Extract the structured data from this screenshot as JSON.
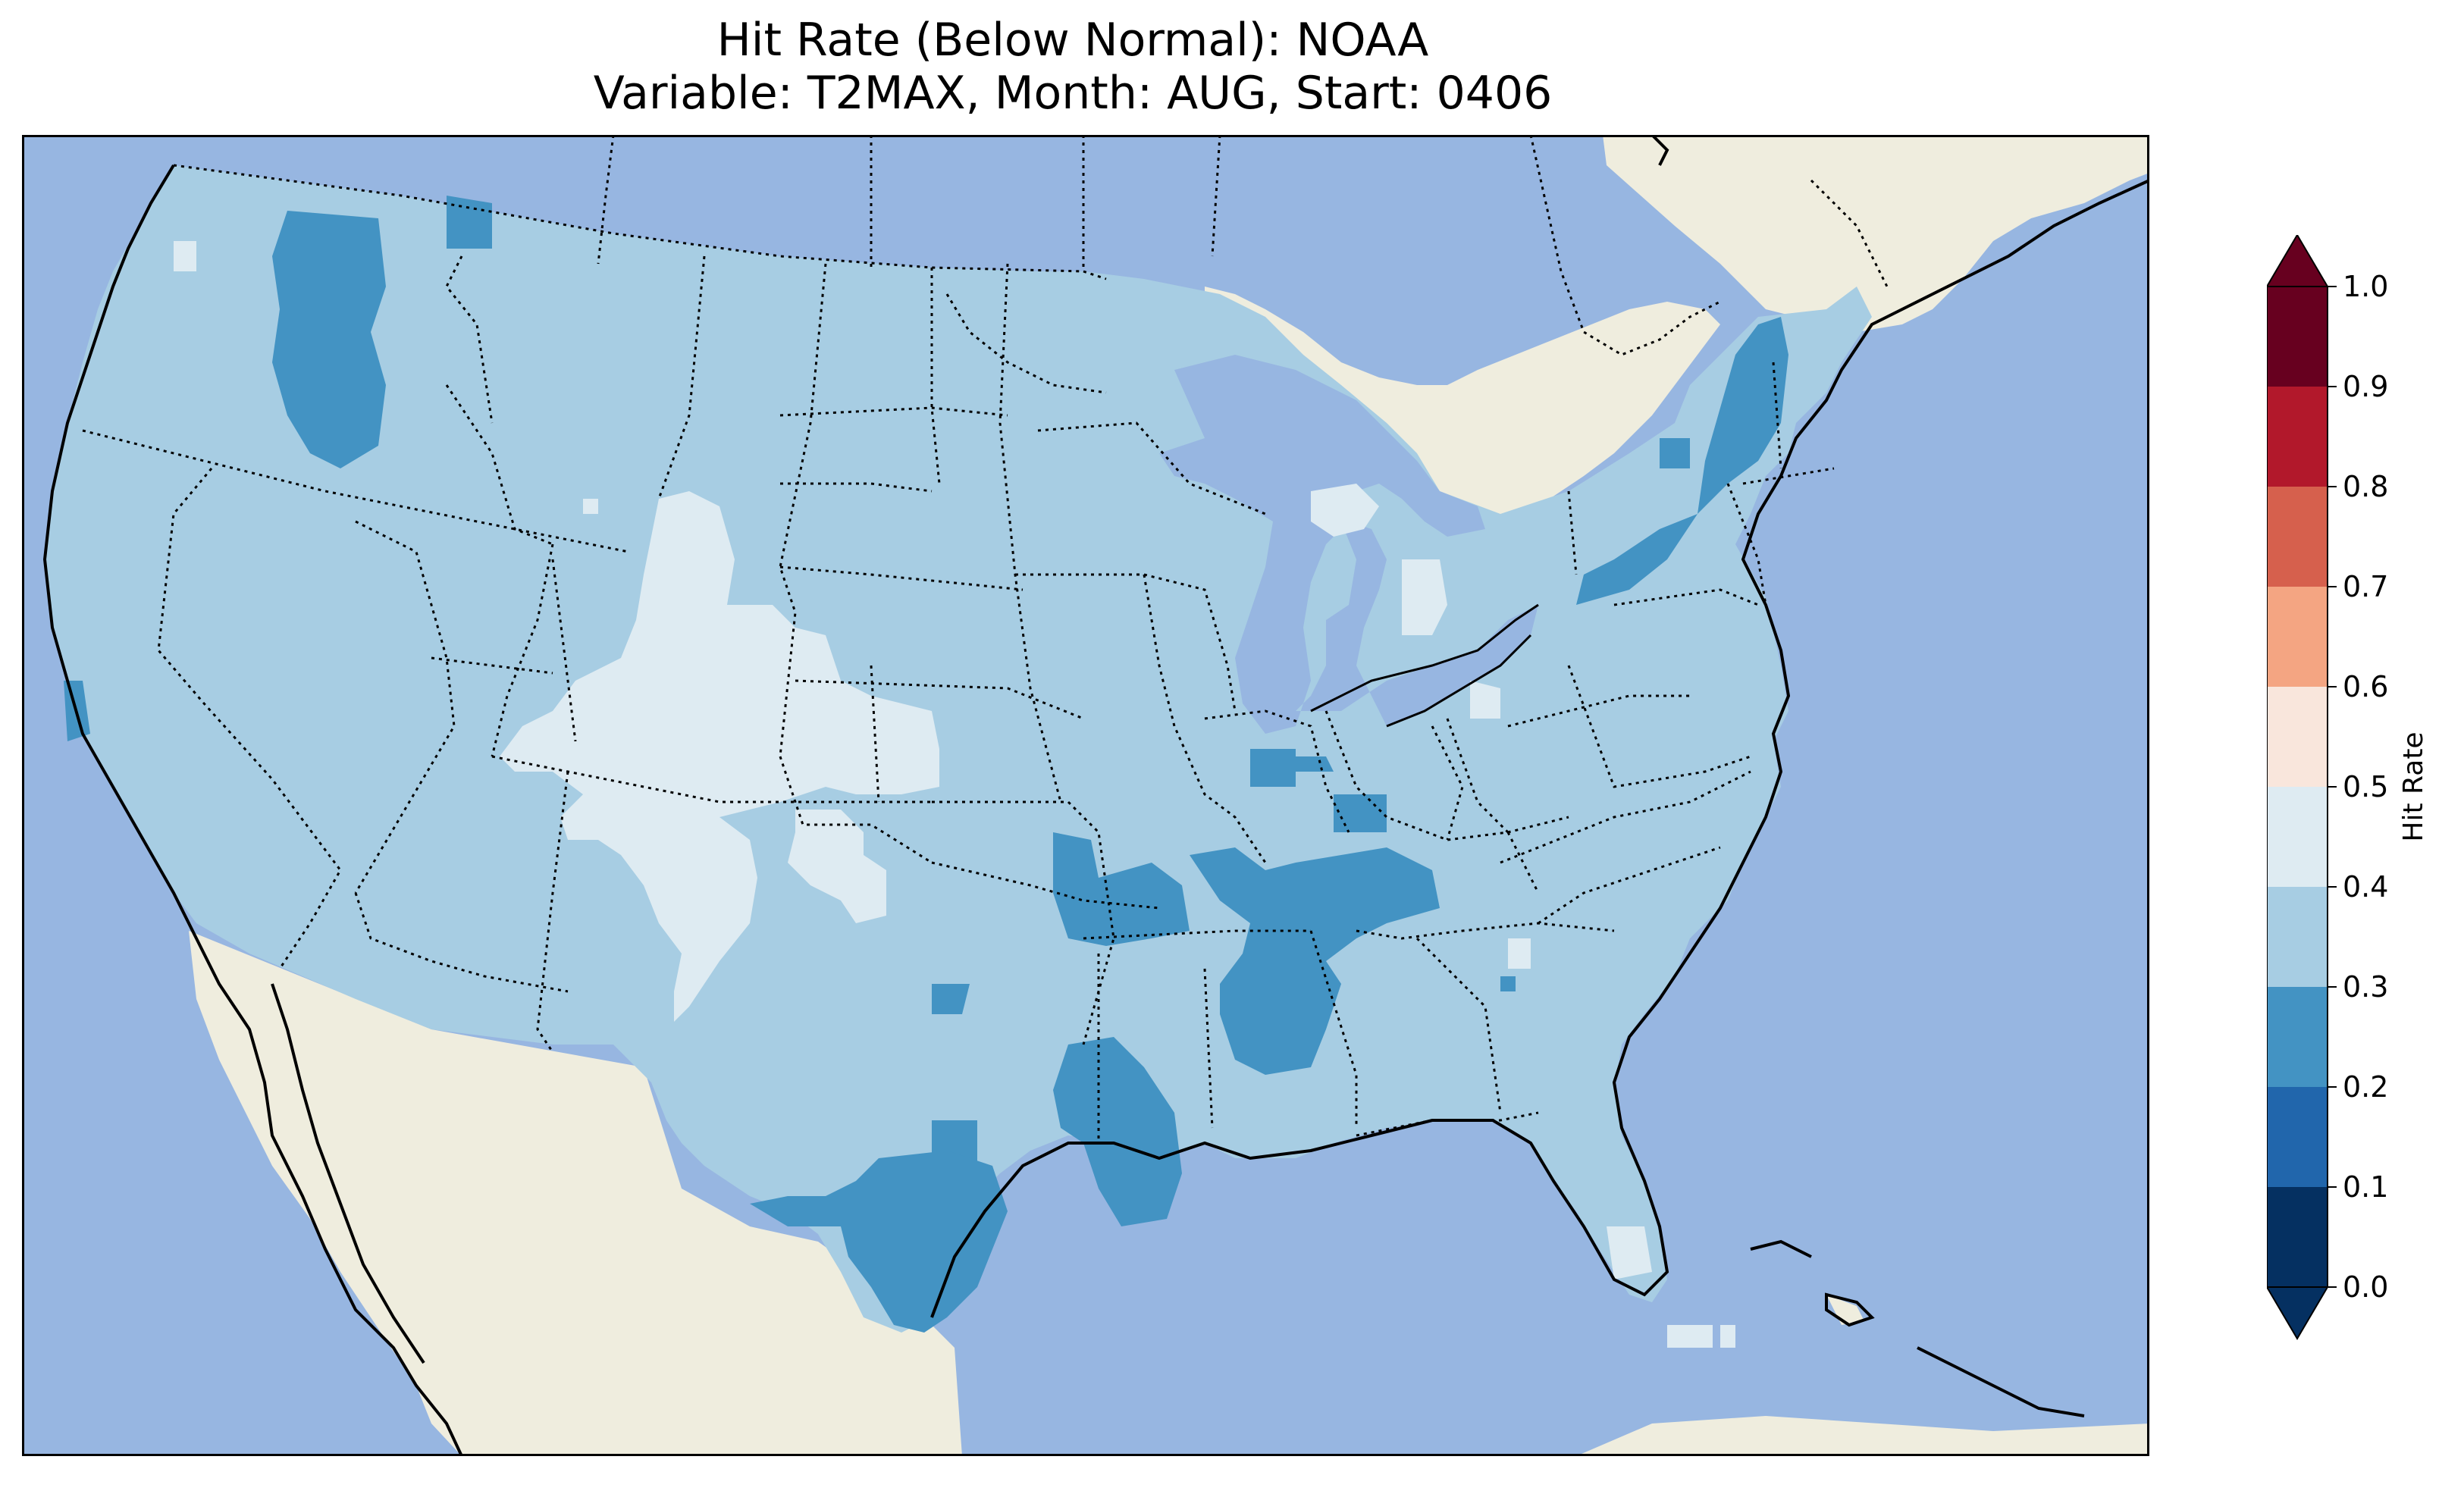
{
  "title_line1": "Hit Rate (Below Normal): NOAA",
  "title_line2": "Variable: T2MAX, Month: AUG, Start: 0406",
  "colorbar": {
    "label": "Hit Rate",
    "ticks": [
      "0.0",
      "0.1",
      "0.2",
      "0.3",
      "0.4",
      "0.5",
      "0.6",
      "0.7",
      "0.8",
      "0.9",
      "1.0"
    ],
    "bins": [
      {
        "range": "0.0-0.1",
        "color": "#053061"
      },
      {
        "range": "0.1-0.2",
        "color": "#2166ac"
      },
      {
        "range": "0.2-0.3",
        "color": "#4393c3"
      },
      {
        "range": "0.3-0.4",
        "color": "#a7cde3"
      },
      {
        "range": "0.4-0.5",
        "color": "#deebf2"
      },
      {
        "range": "0.5-0.6",
        "color": "#f9e6dc"
      },
      {
        "range": "0.6-0.7",
        "color": "#f4a582"
      },
      {
        "range": "0.7-0.8",
        "color": "#d6604d"
      },
      {
        "range": "0.8-0.9",
        "color": "#b2182b"
      },
      {
        "range": "0.9-1.0",
        "color": "#67001f"
      }
    ],
    "extend": "both"
  },
  "map": {
    "ocean_color": "#97b6e1",
    "land_color": "#efedde",
    "dominant_value_color": "#a7cde3",
    "low_value_color": "#4393c3",
    "high_value_color": "#deebf2"
  }
}
